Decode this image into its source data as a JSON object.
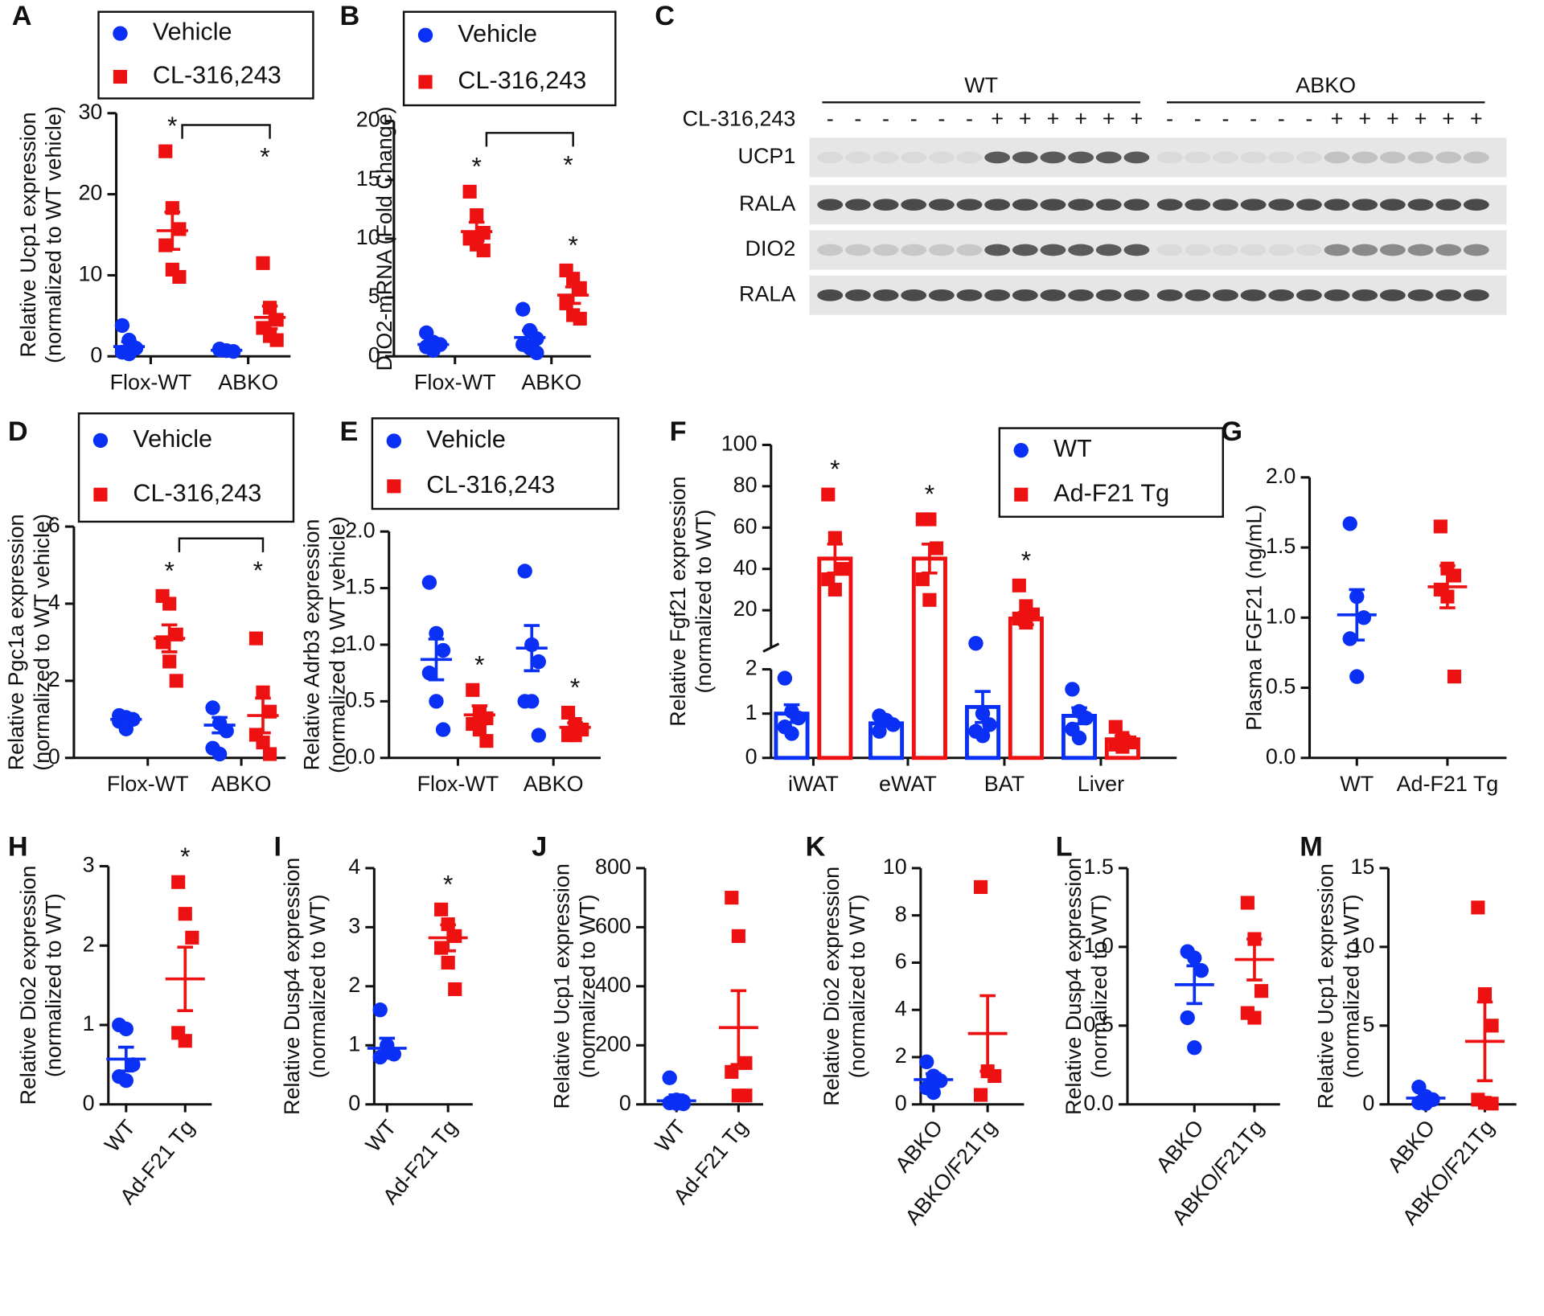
{
  "chart_data": [
    {
      "type": "dot",
      "panel": "A",
      "ylabel": [
        "Relative Ucp1 expression",
        "(normalized to WT vehicle)"
      ],
      "categories": [
        "Flox-WT",
        "ABKO"
      ],
      "dodge": true,
      "ylim": [
        0,
        30
      ],
      "yticks": [
        0,
        10,
        20,
        30
      ],
      "bracket": {
        "label": "*"
      },
      "series": [
        {
          "name": "Vehicle",
          "color": "#0a2ff5",
          "marker": "circle",
          "values": [
            [
              3.8,
              2,
              1,
              0.5,
              0.3
            ],
            [
              0.9,
              0.7,
              0.6,
              0.8
            ]
          ],
          "mean": [
            1.2,
            0.75
          ],
          "sem": [
            0.6,
            0.1
          ]
        },
        {
          "name": "CL-316,243",
          "color": "#ee1111",
          "marker": "square",
          "values": [
            [
              25.3,
              18.3,
              15.7,
              13.7,
              10.7,
              9.8
            ],
            [
              11.5,
              6,
              4.5,
              3.5,
              2.5,
              2
            ]
          ],
          "mean": [
            15.5,
            4.8
          ],
          "sem": [
            2.3,
            1.4
          ],
          "markers": [
            "*",
            null
          ]
        }
      ]
    },
    {
      "type": "dot",
      "panel": "B",
      "ylabel": [
        "DIO2-mRNA (Fold Change)"
      ],
      "categories": [
        "Flox-WT",
        "ABKO"
      ],
      "dodge": true,
      "ylim": [
        0,
        20
      ],
      "yticks": [
        0,
        5,
        10,
        15,
        20
      ],
      "bracket": {
        "label": "*"
      },
      "series": [
        {
          "name": "Vehicle",
          "color": "#0a2ff5",
          "marker": "circle",
          "values": [
            [
              2,
              1.2,
              1,
              0.8,
              0.5
            ],
            [
              4,
              2.2,
              1.5,
              1,
              0.7,
              0.3
            ]
          ],
          "mean": [
            1.0,
            1.6
          ],
          "sem": [
            0.25,
            0.6
          ]
        },
        {
          "name": "CL-316,243",
          "color": "#ee1111",
          "marker": "square",
          "values": [
            [
              14,
              12,
              10.5,
              10,
              9.5,
              9
            ],
            [
              7.3,
              6.6,
              5.8,
              4.5,
              3.5,
              3.2
            ]
          ],
          "mean": [
            10.6,
            5.2
          ],
          "sem": [
            0.8,
            0.7
          ],
          "markers": [
            "*",
            "*"
          ]
        }
      ]
    },
    {
      "type": "dot",
      "panel": "D",
      "ylabel": [
        "Relative Pgc1a expression",
        "(normalized to WT vehicle)"
      ],
      "categories": [
        "Flox-WT",
        "ABKO"
      ],
      "dodge": true,
      "ylim": [
        0,
        6
      ],
      "yticks": [
        0,
        2,
        4,
        6
      ],
      "bracket": {
        "label": "*"
      },
      "series": [
        {
          "name": "Vehicle",
          "color": "#0a2ff5",
          "marker": "circle",
          "values": [
            [
              1.1,
              1.05,
              1.0,
              0.95,
              0.75
            ],
            [
              1.3,
              0.9,
              0.7,
              0.25,
              0.1
            ]
          ],
          "mean": [
            1.0,
            0.85
          ],
          "sem": [
            0.05,
            0.2
          ]
        },
        {
          "name": "CL-316,243",
          "color": "#ee1111",
          "marker": "square",
          "values": [
            [
              4.2,
              4.0,
              3.2,
              3.0,
              2.5,
              2.0
            ],
            [
              3.1,
              1.7,
              1.2,
              0.6,
              0.4,
              0.1
            ]
          ],
          "mean": [
            3.1,
            1.1
          ],
          "sem": [
            0.35,
            0.45
          ],
          "markers": [
            "*",
            null
          ]
        }
      ]
    },
    {
      "type": "dot",
      "panel": "E",
      "ylabel": [
        "Relative Adrb3 expression",
        "(normalized to WT vehicle)"
      ],
      "categories": [
        "Flox-WT",
        "ABKO"
      ],
      "dodge": true,
      "ylim": [
        0,
        2
      ],
      "yticks": [
        {
          "value": 0,
          "label": "0.0"
        },
        {
          "value": 0.5,
          "label": "0.5"
        },
        {
          "value": 1,
          "label": "1.0"
        },
        {
          "value": 1.5,
          "label": "1.5"
        },
        {
          "value": 2,
          "label": "2.0"
        }
      ],
      "series": [
        {
          "name": "Vehicle",
          "color": "#0a2ff5",
          "marker": "circle",
          "values": [
            [
              1.55,
              1.1,
              0.95,
              0.75,
              0.5,
              0.25
            ],
            [
              1.65,
              1.0,
              0.85,
              0.5,
              0.5,
              0.2
            ]
          ],
          "mean": [
            0.87,
            0.97
          ],
          "sem": [
            0.18,
            0.2
          ]
        },
        {
          "name": "CL-316,243",
          "color": "#ee1111",
          "marker": "square",
          "values": [
            [
              0.6,
              0.4,
              0.35,
              0.3,
              0.25,
              0.15
            ],
            [
              0.4,
              0.3,
              0.25,
              0.2,
              0.2
            ]
          ],
          "mean": [
            0.38,
            0.27
          ],
          "sem": [
            0.08,
            0.04
          ],
          "markers": [
            "*",
            "*"
          ]
        }
      ]
    },
    {
      "type": "bar",
      "panel": "F",
      "ylabel": [
        "Relative Fgf21 expression",
        "(normalized to WT)"
      ],
      "categories": [
        "iWAT",
        "eWAT",
        "BAT",
        "Liver"
      ],
      "dodge": true,
      "ylim": [
        0,
        2
      ],
      "yticks": [
        0,
        1,
        2
      ],
      "upper_ylim": [
        0,
        100
      ],
      "upper_yticks": [
        20,
        40,
        60,
        80,
        100
      ],
      "series": [
        {
          "name": "WT",
          "color": "#0a2ff5",
          "marker": "circle",
          "values": [
            [
              1.8,
              1.05,
              0.9,
              0.7,
              0.55
            ],
            [
              0.95,
              0.85,
              0.75,
              0.6
            ],
            [
              4,
              1.0,
              0.75,
              0.6,
              0.5
            ],
            [
              1.55,
              1.05,
              0.9,
              0.65,
              0.45
            ]
          ],
          "mean": [
            1.0,
            0.78,
            1.15,
            0.95
          ],
          "sem": [
            0.2,
            0.07,
            0.35,
            0.18
          ]
        },
        {
          "name": "Ad-F21 Tg",
          "color": "#ee1111",
          "marker": "square",
          "values": [
            [
              76,
              55,
              40,
              35,
              30
            ],
            [
              64,
              64,
              50,
              35,
              25
            ],
            [
              32,
              22,
              18,
              16,
              14
            ],
            [
              0.7,
              0.45,
              0.35,
              0.3,
              0.25
            ]
          ],
          "mean": [
            45,
            45,
            16,
            0.42
          ],
          "sem": [
            7,
            7,
            3,
            0.08
          ],
          "markers": [
            "*",
            "*",
            "*",
            null
          ]
        }
      ]
    },
    {
      "type": "dot",
      "panel": "G",
      "ylabel": [
        "Plasma FGF21 (ng/mL)"
      ],
      "categories": [
        "WT",
        "Ad-F21 Tg"
      ],
      "dodge": false,
      "ylim": [
        0,
        2
      ],
      "yticks": [
        {
          "value": 0,
          "label": "0.0"
        },
        {
          "value": 0.5,
          "label": "0.5"
        },
        {
          "value": 1,
          "label": "1.0"
        },
        {
          "value": 1.5,
          "label": "1.5"
        },
        {
          "value": 2,
          "label": "2.0"
        }
      ],
      "series": [
        {
          "color": "#0a2ff5",
          "marker": "circle",
          "values": [
            [
              1.67,
              1.15,
              1.0,
              0.85,
              0.58
            ],
            null
          ],
          "mean": [
            1.02,
            null
          ],
          "sem": [
            0.18,
            null
          ]
        },
        {
          "color": "#ee1111",
          "marker": "square",
          "values": [
            null,
            [
              1.65,
              1.35,
              1.3,
              1.2,
              1.15,
              0.58
            ]
          ],
          "mean": [
            null,
            1.22
          ],
          "sem": [
            null,
            0.15
          ]
        }
      ]
    },
    {
      "type": "dot",
      "panel": "H",
      "ylabel": [
        "Relative Dio2  expression",
        "(normalized to WT)"
      ],
      "categories": [
        "WT",
        "Ad-F21 Tg"
      ],
      "dodge": false,
      "rotate_labels": true,
      "ylim": [
        0,
        3
      ],
      "yticks": [
        0,
        1,
        2,
        3
      ],
      "series": [
        {
          "color": "#0a2ff5",
          "marker": "circle",
          "values": [
            [
              1.0,
              0.95,
              0.5,
              0.35,
              0.3
            ],
            null
          ],
          "mean": [
            0.57,
            null
          ],
          "sem": [
            0.15,
            null
          ]
        },
        {
          "color": "#ee1111",
          "marker": "square",
          "values": [
            null,
            [
              2.8,
              2.4,
              2.1,
              0.9,
              0.8
            ]
          ],
          "mean": [
            null,
            1.58
          ],
          "sem": [
            null,
            0.4
          ],
          "markers": [
            null,
            "*"
          ]
        }
      ]
    },
    {
      "type": "dot",
      "panel": "I",
      "ylabel": [
        "Relative Dusp4  expression",
        "(normalized to WT)"
      ],
      "categories": [
        "WT",
        "Ad-F21 Tg"
      ],
      "dodge": false,
      "rotate_labels": true,
      "ylim": [
        0,
        4
      ],
      "yticks": [
        0,
        1,
        2,
        3,
        4
      ],
      "series": [
        {
          "color": "#0a2ff5",
          "marker": "circle",
          "values": [
            [
              1.6,
              1.0,
              0.85,
              0.8
            ],
            null
          ],
          "mean": [
            0.95,
            null
          ],
          "sem": [
            0.17,
            null
          ]
        },
        {
          "color": "#ee1111",
          "marker": "square",
          "values": [
            null,
            [
              3.3,
              3.05,
              2.85,
              2.65,
              2.4,
              1.95
            ]
          ],
          "mean": [
            null,
            2.82
          ],
          "sem": [
            null,
            0.22
          ],
          "markers": [
            null,
            "*"
          ]
        }
      ]
    },
    {
      "type": "dot",
      "panel": "J",
      "ylabel": [
        "Relative Ucp1 expression",
        "(normalized to WT)"
      ],
      "categories": [
        "WT",
        "Ad-F21 Tg"
      ],
      "dodge": false,
      "rotate_labels": true,
      "ylim": [
        0,
        800
      ],
      "yticks": [
        0,
        200,
        400,
        600,
        800
      ],
      "series": [
        {
          "color": "#0a2ff5",
          "marker": "circle",
          "values": [
            [
              90,
              15,
              10,
              5,
              3,
              2
            ],
            null
          ],
          "mean": [
            12,
            null
          ],
          "sem": [
            20,
            null
          ]
        },
        {
          "color": "#ee1111",
          "marker": "square",
          "values": [
            null,
            [
              700,
              570,
              140,
              110,
              30,
              30
            ]
          ],
          "mean": [
            null,
            260
          ],
          "sem": [
            null,
            125
          ]
        }
      ]
    },
    {
      "type": "dot",
      "panel": "K",
      "ylabel": [
        "Relative Dio2  expression",
        "(normalized to WT)"
      ],
      "categories": [
        "ABKO",
        "ABKO/F21Tg"
      ],
      "dodge": false,
      "rotate_labels": true,
      "ylim": [
        0,
        10
      ],
      "yticks": [
        0,
        2,
        4,
        6,
        8,
        10
      ],
      "series": [
        {
          "color": "#0a2ff5",
          "marker": "circle",
          "values": [
            [
              1.8,
              1.2,
              1.0,
              0.7,
              0.5
            ],
            null
          ],
          "mean": [
            1.05,
            null
          ],
          "sem": [
            0.25,
            null
          ]
        },
        {
          "color": "#ee1111",
          "marker": "square",
          "values": [
            null,
            [
              9.2,
              1.4,
              1.2,
              0.4
            ]
          ],
          "mean": [
            null,
            3.0
          ],
          "sem": [
            null,
            1.6
          ]
        }
      ]
    },
    {
      "type": "dot",
      "panel": "L",
      "ylabel": [
        "Relative Dusp4  expression",
        "(normalized to WT)"
      ],
      "categories": [
        "ABKO",
        "ABKO/F21Tg"
      ],
      "dodge": false,
      "rotate_labels": true,
      "ylim": [
        0,
        1.5
      ],
      "yticks": [
        {
          "value": 0,
          "label": "0.0"
        },
        {
          "value": 0.5,
          "label": "0.5"
        },
        {
          "value": 1,
          "label": "1.0"
        },
        {
          "value": 1.5,
          "label": "1.5"
        }
      ],
      "series": [
        {
          "color": "#0a2ff5",
          "marker": "circle",
          "values": [
            [
              0.97,
              0.93,
              0.85,
              0.55,
              0.36
            ],
            null
          ],
          "mean": [
            0.76,
            null
          ],
          "sem": [
            0.12,
            null
          ]
        },
        {
          "color": "#ee1111",
          "marker": "square",
          "values": [
            null,
            [
              1.28,
              1.05,
              0.72,
              0.58,
              0.55
            ]
          ],
          "mean": [
            null,
            0.92
          ],
          "sem": [
            null,
            0.13
          ]
        }
      ]
    },
    {
      "type": "dot",
      "panel": "M",
      "ylabel": [
        "Relative Ucp1  expression",
        "(normalized to WT)"
      ],
      "categories": [
        "ABKO",
        "ABKO/F21Tg"
      ],
      "dodge": false,
      "rotate_labels": true,
      "ylim": [
        0,
        15
      ],
      "yticks": [
        0,
        5,
        10,
        15
      ],
      "series": [
        {
          "color": "#0a2ff5",
          "marker": "circle",
          "values": [
            [
              1.1,
              0.5,
              0.3,
              0.1,
              0.05
            ],
            null
          ],
          "mean": [
            0.4,
            null
          ],
          "sem": [
            0.2,
            null
          ]
        },
        {
          "color": "#ee1111",
          "marker": "square",
          "values": [
            null,
            [
              12.5,
              7,
              5,
              0.3,
              0.1,
              0.05
            ]
          ],
          "mean": [
            null,
            4
          ],
          "sem": [
            null,
            2.5
          ]
        }
      ]
    }
  ],
  "blot": {
    "panel": "C",
    "groups": [
      "WT",
      "ABKO"
    ],
    "treatment": "CL-316,243",
    "signs": [
      "-",
      "-",
      "-",
      "-",
      "-",
      "-",
      "+",
      "+",
      "+",
      "+",
      "+",
      "+",
      "-",
      "-",
      "-",
      "-",
      "-",
      "-",
      "+",
      "+",
      "+",
      "+",
      "+",
      "+"
    ],
    "rows": [
      "UCP1",
      "RALA",
      "DIO2",
      "RALA"
    ]
  }
}
